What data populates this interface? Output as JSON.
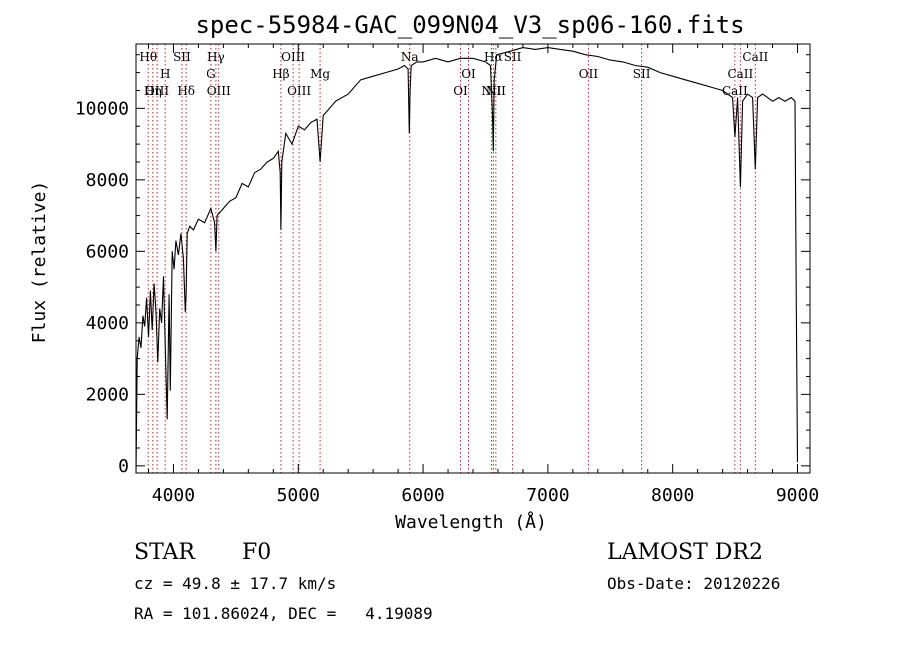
{
  "chart_data": {
    "type": "line",
    "title": "spec-55984-GAC_099N04_V3_sp06-160.fits",
    "xlabel": "Wavelength (Å)",
    "ylabel": "Flux (relative)",
    "xlim": [
      3700,
      9100
    ],
    "ylim": [
      -200,
      11800
    ],
    "xticks": [
      "4000",
      "5000",
      "6000",
      "7000",
      "8000",
      "9000"
    ],
    "yticks": [
      "0",
      "2000",
      "4000",
      "6000",
      "8000",
      "10000"
    ],
    "grid": false,
    "series": [
      {
        "x": [
          3700,
          3710,
          3725,
          3740,
          3755,
          3770,
          3785,
          3800,
          3815,
          3830,
          3845,
          3860,
          3875,
          3890,
          3905,
          3920,
          3935,
          3950,
          3965,
          3975,
          3990,
          4005,
          4020,
          4040,
          4060,
          4080,
          4095,
          4101,
          4110,
          4130,
          4160,
          4200,
          4250,
          4300,
          4330,
          4340,
          4350,
          4400,
          4450,
          4500,
          4550,
          4600,
          4650,
          4700,
          4750,
          4800,
          4840,
          4855,
          4861,
          4868,
          4900,
          4950,
          5000,
          5050,
          5100,
          5150,
          5175,
          5200,
          5250,
          5300,
          5400,
          5500,
          5600,
          5700,
          5800,
          5850,
          5880,
          5890,
          5896,
          5905,
          5950,
          6000,
          6100,
          6200,
          6300,
          6400,
          6500,
          6540,
          6556,
          6563,
          6570,
          6590,
          6700,
          6800,
          6900,
          7000,
          7100,
          7200,
          7300,
          7400,
          7500,
          7600,
          7700,
          7800,
          7900,
          8000,
          8100,
          8200,
          8300,
          8400,
          8480,
          8498,
          8520,
          8542,
          8560,
          8600,
          8640,
          8662,
          8680,
          8720,
          8760,
          8800,
          8850,
          8900,
          8950,
          8980,
          8990,
          9000
        ],
        "y": [
          -200,
          3000,
          3600,
          3300,
          4200,
          3900,
          4700,
          3600,
          4900,
          3800,
          5100,
          4300,
          2900,
          4400,
          4000,
          5300,
          3300,
          1300,
          4800,
          2100,
          6000,
          5500,
          6300,
          5900,
          6500,
          5800,
          4300,
          4800,
          6500,
          6700,
          6600,
          6900,
          6800,
          7200,
          6800,
          6000,
          7000,
          7200,
          7400,
          7500,
          7900,
          7800,
          8200,
          8300,
          8500,
          8600,
          8800,
          8200,
          6600,
          8500,
          9300,
          9000,
          9500,
          9400,
          9600,
          9700,
          8500,
          9800,
          10000,
          10200,
          10400,
          10800,
          10900,
          11000,
          11100,
          11200,
          11100,
          9300,
          10500,
          11200,
          11300,
          11300,
          11400,
          11300,
          11400,
          11400,
          11300,
          11200,
          9800,
          8800,
          10800,
          11500,
          11600,
          11700,
          11650,
          11700,
          11650,
          11600,
          11500,
          11450,
          11350,
          11300,
          11200,
          11150,
          11000,
          10900,
          10800,
          10700,
          10600,
          10500,
          10300,
          9200,
          10300,
          7800,
          10200,
          10400,
          10300,
          8300,
          10300,
          10400,
          10300,
          10200,
          10300,
          10200,
          10300,
          10200,
          4500,
          100
        ]
      }
    ],
    "lines": [
      {
        "w": 3798,
        "label": "Hθ",
        "row": 0
      },
      {
        "w": 3835,
        "label": "Hη",
        "row": 2
      },
      {
        "w": 3869,
        "label": "OIII",
        "row": 2
      },
      {
        "w": 3934,
        "label": "H",
        "row": 1
      },
      {
        "w": 4068,
        "label": "SII",
        "row": 0
      },
      {
        "w": 4102,
        "label": "Hδ",
        "row": 2
      },
      {
        "w": 4300,
        "label": "G",
        "row": 1
      },
      {
        "w": 4340,
        "label": "Hγ",
        "row": 0
      },
      {
        "w": 4363,
        "label": "OIII",
        "row": 2
      },
      {
        "w": 4861,
        "label": "Hβ",
        "row": 1
      },
      {
        "w": 4959,
        "label": "OIII",
        "row": 0
      },
      {
        "w": 5007,
        "label": "OIII",
        "row": 2
      },
      {
        "w": 5175,
        "label": "Mg",
        "row": 1
      },
      {
        "w": 5893,
        "label": "Na",
        "row": 0
      },
      {
        "w": 6300,
        "label": "OI",
        "row": 2
      },
      {
        "w": 6364,
        "label": "OI",
        "row": 1
      },
      {
        "w": 6548,
        "label": "NII",
        "row": 2
      },
      {
        "w": 6563,
        "label": "Hα",
        "row": 0
      },
      {
        "w": 6583,
        "label": "NII",
        "row": 2
      },
      {
        "w": 6717,
        "label": "SII",
        "row": 0
      },
      {
        "w": 7325,
        "label": "OII",
        "row": 1
      },
      {
        "w": 7751,
        "label": "SII",
        "row": 1
      },
      {
        "w": 8498,
        "label": "CaII",
        "row": 2
      },
      {
        "w": 8542,
        "label": "CaII",
        "row": 1
      },
      {
        "w": 8662,
        "label": "CaII",
        "row": 0
      }
    ]
  },
  "info": {
    "class": "STAR",
    "subclass": "F0",
    "survey": "LAMOST DR2",
    "cz": "cz = 49.8 ± 17.7 km/s",
    "obs_date": "Obs-Date: 20120226",
    "coords": "RA = 101.86024, DEC =   4.19089"
  }
}
